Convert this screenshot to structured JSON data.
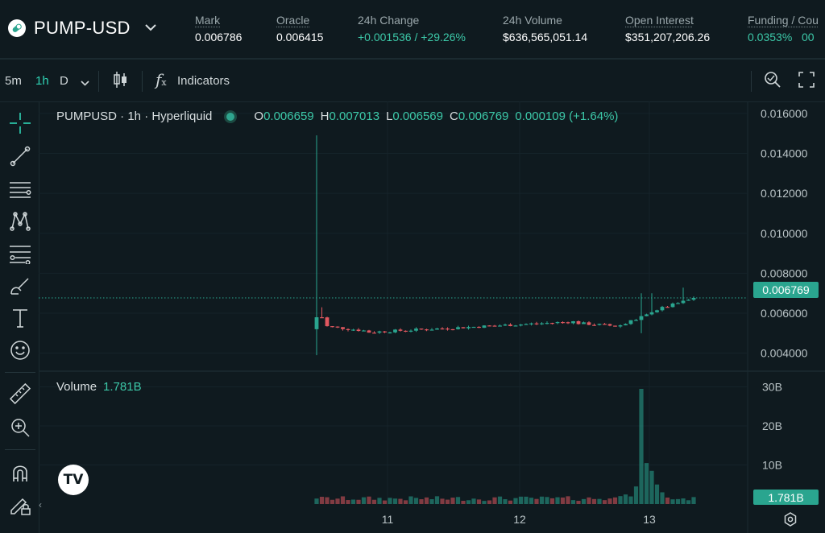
{
  "market": {
    "pair": "PUMP-USD",
    "stats": [
      {
        "label": "Mark",
        "value": "0.006786",
        "color": "white"
      },
      {
        "label": "Oracle",
        "value": "0.006415",
        "color": "white"
      },
      {
        "label": "24h Change",
        "value": "+0.001536 / +29.26%",
        "color": "green"
      },
      {
        "label": "24h Volume",
        "value": "$636,565,051.14",
        "color": "white"
      },
      {
        "label": "Open Interest",
        "value": "$351,207,206.26",
        "color": "white"
      },
      {
        "label": "Funding / Cou",
        "value": "0.0353%   00",
        "color": "green"
      }
    ]
  },
  "toolbar": {
    "intervals": [
      "5m",
      "1h",
      "D"
    ],
    "active_interval": "1h",
    "indicators_label": "Indicators"
  },
  "chart": {
    "symbol_line": "PUMPUSD · 1h · Hyperliquid",
    "ohlc": {
      "o_label": "O",
      "o": "0.006659",
      "h_label": "H",
      "h": "0.007013",
      "l_label": "L",
      "l": "0.006569",
      "c_label": "C",
      "c": "0.006769",
      "change": "0.000109 (+1.64%)"
    },
    "volume_label": "Volume",
    "volume_value": "1.781B",
    "last_price_tag": "0.006769",
    "last_volume_tag": "1.781B",
    "colors": {
      "up": "#2aa58f",
      "down": "#e0575f",
      "grid": "#1b2a30"
    }
  },
  "chart_data": {
    "type": "candlestick",
    "price_axis_ticks": [
      "0.016000",
      "0.014000",
      "0.012000",
      "0.010000",
      "0.008000",
      "0.006000",
      "0.004000"
    ],
    "volume_axis_ticks": [
      "30B",
      "20B",
      "10B"
    ],
    "x_ticks": [
      "11",
      "12",
      "13"
    ],
    "price_range": [
      0.0031,
      0.0166
    ],
    "volume_range": [
      0,
      33
    ],
    "last_price": 0.006769
  }
}
